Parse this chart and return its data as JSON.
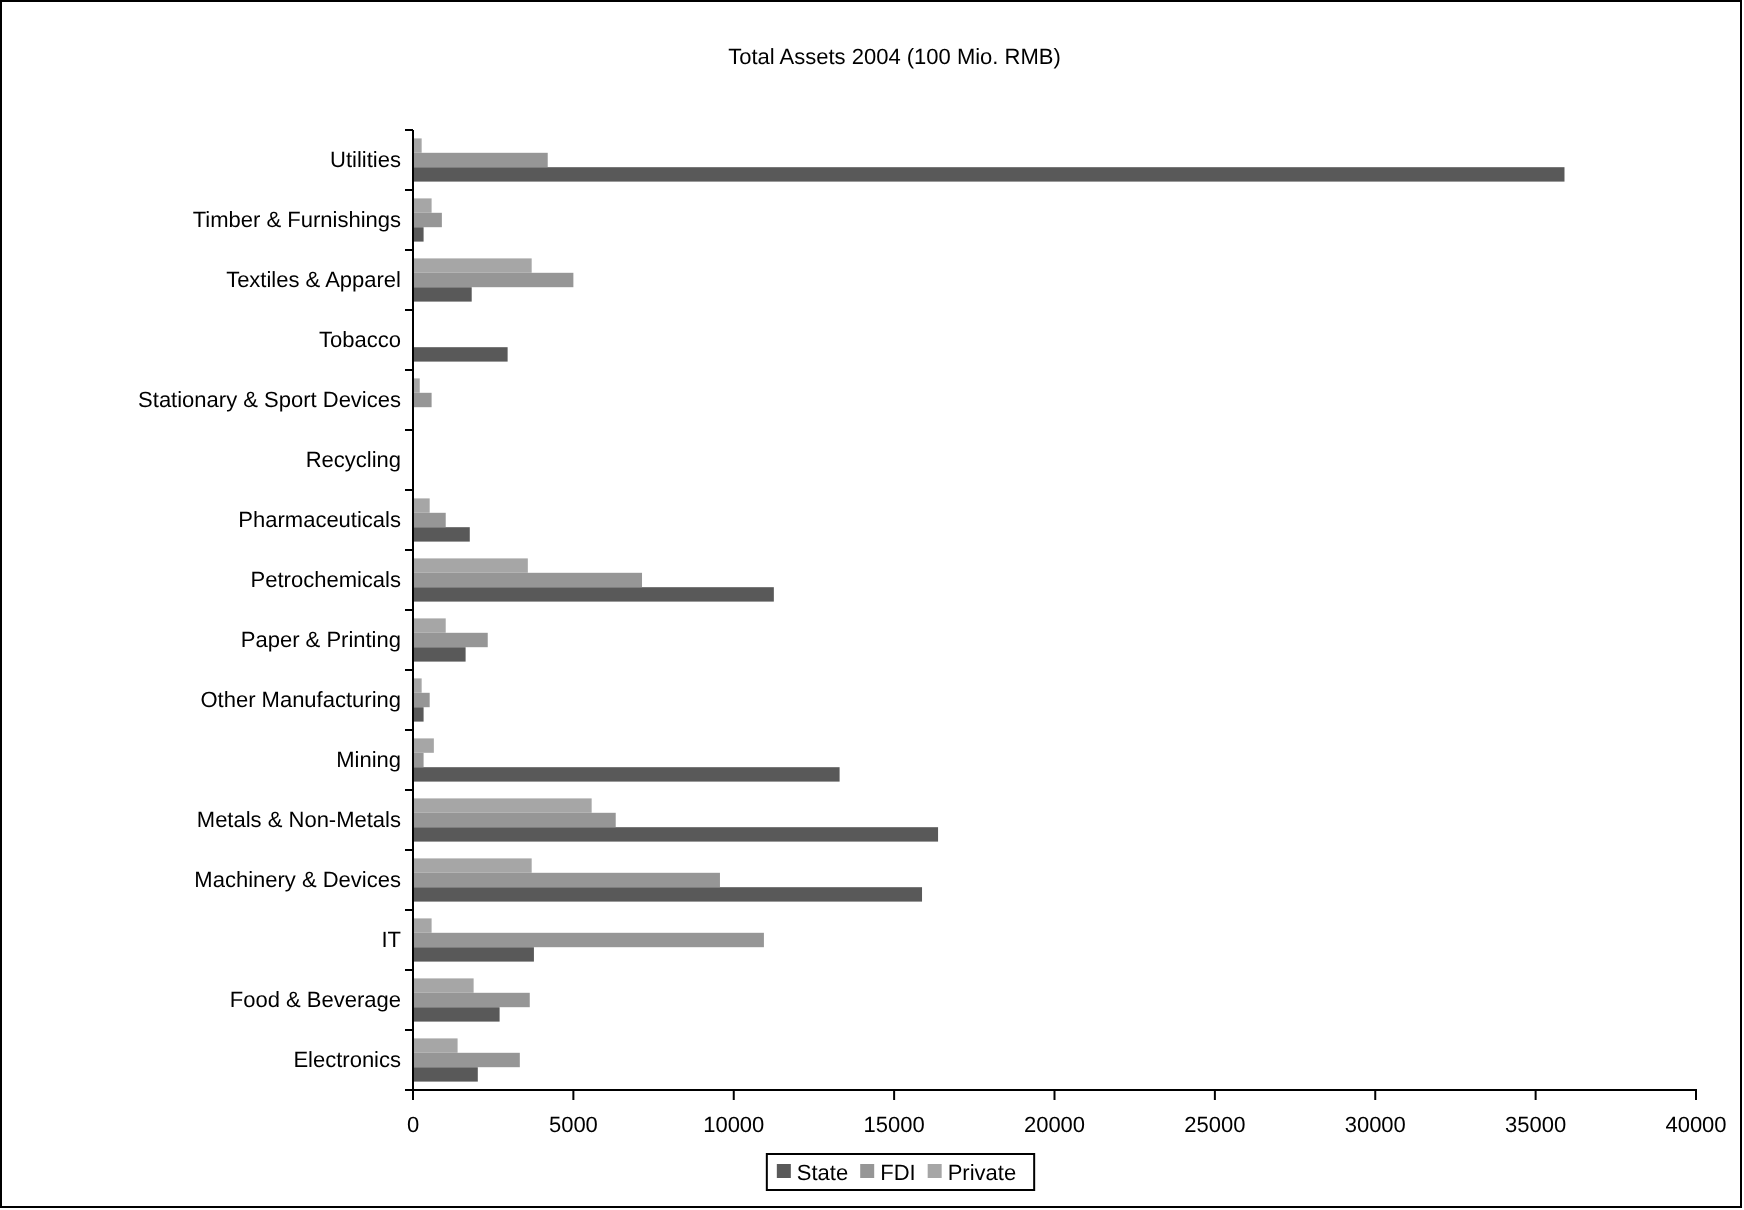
{
  "chart_data": {
    "type": "bar",
    "orientation": "horizontal",
    "title": "Total Assets 2004 (100 Mio. RMB)",
    "categories": [
      "Utilities",
      "Timber & Furnishings",
      "Textiles & Apparel",
      "Tobacco",
      "Stationary & Sport Devices",
      "Recycling",
      "Pharmaceuticals",
      "Petrochemicals",
      "Paper & Printing",
      "Other Manufacturing",
      "Mining",
      "Metals & Non-Metals",
      "Machinery & Devices",
      "IT",
      "Food & Beverage",
      "Electronics"
    ],
    "series": [
      {
        "name": "State",
        "color": "#595959",
        "values": [
          35900,
          330,
          1830,
          2950,
          0,
          0,
          1770,
          11250,
          1640,
          330,
          13300,
          16370,
          15870,
          3770,
          2700,
          2020
        ]
      },
      {
        "name": "FDI",
        "color": "#969696",
        "values": [
          4200,
          900,
          5000,
          0,
          580,
          0,
          1020,
          7140,
          2330,
          520,
          330,
          6320,
          9570,
          10940,
          3640,
          3330
        ]
      },
      {
        "name": "Private",
        "color": "#a6a6a6",
        "values": [
          270,
          580,
          3700,
          0,
          210,
          0,
          520,
          3580,
          1020,
          270,
          650,
          5570,
          3700,
          580,
          1890,
          1390
        ]
      }
    ],
    "xlim": [
      0,
      40000
    ],
    "xticks": [
      0,
      5000,
      10000,
      15000,
      20000,
      25000,
      30000,
      35000,
      40000
    ],
    "grid": false,
    "legend": "bottom"
  }
}
